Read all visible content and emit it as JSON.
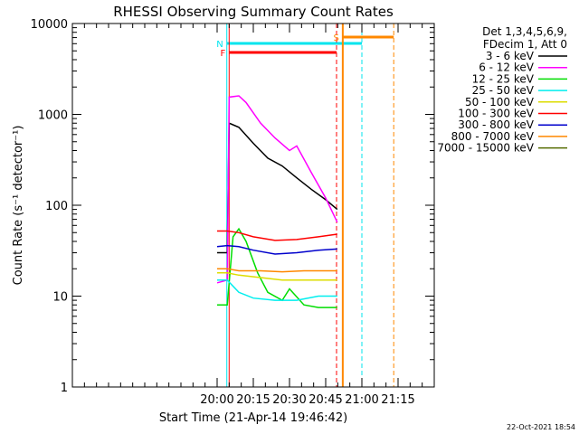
{
  "chart_data": {
    "type": "line",
    "title": "RHESSI Observing Summary Count Rates",
    "xlabel": "Start Time (21-Apr-14 19:46:42)",
    "ylabel": "Count Rate (s⁻¹ detector⁻¹)",
    "yscale": "log",
    "ylim": [
      1,
      10000
    ],
    "xlim_minutes": [
      19.0,
      21.5
    ],
    "x_ticks": [
      "20:00",
      "20:15",
      "20:30",
      "20:45",
      "21:00",
      "21:15"
    ],
    "y_ticks": [
      "1",
      "10",
      "100",
      "1000",
      "10000"
    ],
    "legend_header": [
      "Det 1,3,4,5,6,9,",
      "FDecim 1, Att 0"
    ],
    "series": [
      {
        "name": "3 - 6 keV",
        "color": "#000000",
        "x": [
          20.0,
          20.07,
          20.083,
          20.15,
          20.25,
          20.35,
          20.45,
          20.55,
          20.65,
          20.75,
          20.83
        ],
        "y": [
          30,
          30,
          800,
          720,
          480,
          330,
          270,
          200,
          150,
          115,
          90
        ]
      },
      {
        "name": "6 - 12 keV",
        "color": "#ff00ff",
        "x": [
          20.0,
          20.07,
          20.083,
          20.15,
          20.2,
          20.3,
          20.4,
          20.5,
          20.55,
          20.65,
          20.75,
          20.83
        ],
        "y": [
          14,
          15,
          1550,
          1600,
          1350,
          800,
          550,
          400,
          450,
          230,
          120,
          65
        ]
      },
      {
        "name": "12 - 25 keV",
        "color": "#00dd00",
        "x": [
          20.0,
          20.07,
          20.11,
          20.15,
          20.2,
          20.28,
          20.35,
          20.45,
          20.5,
          20.6,
          20.7,
          20.83
        ],
        "y": [
          8,
          8,
          45,
          55,
          40,
          18,
          11,
          9,
          12,
          8,
          7.5,
          7.5
        ]
      },
      {
        "name": "25 - 50 keV",
        "color": "#00eeee",
        "x": [
          20.0,
          20.07,
          20.15,
          20.25,
          20.4,
          20.55,
          20.7,
          20.83
        ],
        "y": [
          15,
          15,
          11,
          9.5,
          9,
          9,
          10,
          10
        ]
      },
      {
        "name": "50 - 100 keV",
        "color": "#dddd00",
        "x": [
          20.0,
          20.07,
          20.15,
          20.3,
          20.45,
          20.6,
          20.83
        ],
        "y": [
          18,
          18,
          17,
          16,
          15,
          15,
          15
        ]
      },
      {
        "name": "100 - 300 keV",
        "color": "#ff0000",
        "x": [
          20.0,
          20.07,
          20.15,
          20.25,
          20.4,
          20.55,
          20.7,
          20.83
        ],
        "y": [
          52,
          52,
          50,
          45,
          41,
          42,
          45,
          48
        ]
      },
      {
        "name": "300 - 800 keV",
        "color": "#0000cc",
        "x": [
          20.0,
          20.07,
          20.15,
          20.25,
          20.4,
          20.55,
          20.7,
          20.83
        ],
        "y": [
          35,
          36,
          35,
          32,
          29,
          30,
          32,
          33
        ]
      },
      {
        "name": "800 - 7000 keV",
        "color": "#ff8800",
        "x": [
          20.0,
          20.07,
          20.15,
          20.3,
          20.45,
          20.6,
          20.83
        ],
        "y": [
          20,
          20,
          19,
          19,
          18.5,
          19,
          19
        ]
      },
      {
        "name": "7000 - 15000 keV",
        "color": "#556b00",
        "x": [],
        "y": []
      }
    ],
    "annotations": [
      {
        "label": "N",
        "color": "#00e5ee",
        "x_start": 20.067,
        "x_end": 21.0
      },
      {
        "label": "F",
        "color": "#ff0000",
        "x_start": 20.083,
        "x_end": 20.825
      },
      {
        "label": "S",
        "color": "#ff8800",
        "x_start": 20.868,
        "x_end": 21.22
      }
    ],
    "timestamp": "22-Oct-2021 18:54"
  }
}
